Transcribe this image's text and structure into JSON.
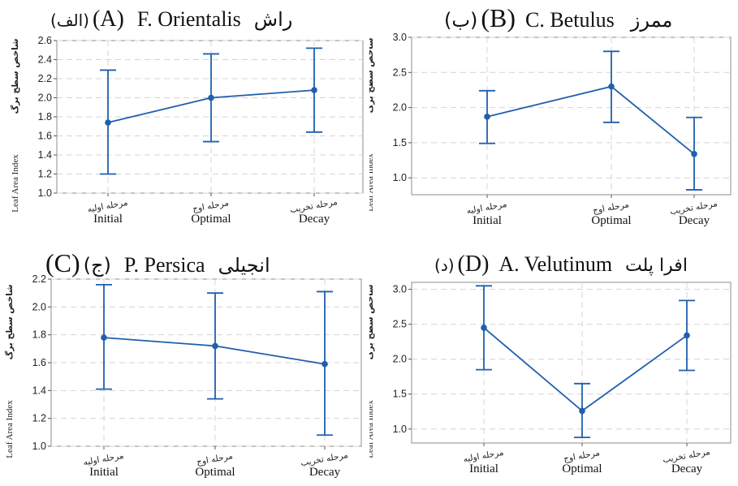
{
  "axis_title_en": "Leaf Area Index",
  "axis_title_fa": "شاخص سطح برگ",
  "chart_data": [
    {
      "type": "line",
      "panel_code": "(A)",
      "panel_code_fa": "(الف)",
      "species": "F. Orientalis",
      "species_fa": "راش",
      "ylabel": "Leaf Area Index",
      "categories": [
        "Initial",
        "Optimal",
        "Decay"
      ],
      "categories_fa": [
        "مرحله اولیه",
        "مرحله اوج",
        "مرحله تخریب"
      ],
      "values": [
        1.74,
        2.0,
        2.08
      ],
      "error_low": [
        1.2,
        1.54,
        1.64
      ],
      "error_high": [
        2.29,
        2.46,
        2.52
      ],
      "ylim": [
        1.0,
        2.6
      ],
      "yticks": [
        "1.0",
        "1.2",
        "1.4",
        "1.6",
        "1.8",
        "2.0",
        "2.2",
        "2.4",
        "2.6"
      ],
      "grid": true,
      "color": "#1f5fad"
    },
    {
      "type": "line",
      "panel_code": "(B)",
      "panel_code_fa": "(ب)",
      "species": "C. Betulus",
      "species_fa": "ممرز",
      "ylabel": "Leaf Area Index",
      "categories": [
        "Initial",
        "Optimal",
        "Decay"
      ],
      "categories_fa": [
        "مرحله اولیه",
        "مرحله اوج",
        "مرحله تخریب"
      ],
      "values": [
        1.87,
        2.3,
        1.34
      ],
      "error_low": [
        1.49,
        1.79,
        0.83
      ],
      "error_high": [
        2.24,
        2.8,
        1.86
      ],
      "ylim": [
        0.76,
        3.0
      ],
      "yticks": [
        "1.0",
        "1.5",
        "2.0",
        "2.5",
        "3.0"
      ],
      "grid": true,
      "color": "#1f5fad"
    },
    {
      "type": "line",
      "panel_code": "(C)",
      "panel_code_fa": "(ج)",
      "species": "P. Persica",
      "species_fa": "انجیلی",
      "ylabel": "Leaf Area Index",
      "categories": [
        "Initial",
        "Optimal",
        "Decay"
      ],
      "categories_fa": [
        "مرحله اولیه",
        "مرحله اوج",
        "مرحله تخریب"
      ],
      "values": [
        1.78,
        1.72,
        1.59
      ],
      "error_low": [
        1.41,
        1.34,
        1.08
      ],
      "error_high": [
        2.16,
        2.1,
        2.11
      ],
      "ylim": [
        1.0,
        2.2
      ],
      "yticks": [
        "1.0",
        "1.2",
        "1.4",
        "1.6",
        "1.8",
        "2.0",
        "2.2"
      ],
      "grid": true,
      "color": "#1f5fad"
    },
    {
      "type": "line",
      "panel_code": "(D)",
      "panel_code_fa": "(د)",
      "species": "A. Velutinum",
      "species_fa": "افرا پلت",
      "ylabel": "Leaf Area Index",
      "categories": [
        "Initial",
        "Optimal",
        "Decay"
      ],
      "categories_fa": [
        "مرحله اولیه",
        "مرحله اوج",
        "مرحله تخریب"
      ],
      "values": [
        2.45,
        1.26,
        2.34
      ],
      "error_low": [
        1.85,
        0.88,
        1.84
      ],
      "error_high": [
        3.05,
        1.65,
        2.84
      ],
      "ylim": [
        0.8,
        3.1
      ],
      "yticks": [
        "1.0",
        "1.5",
        "2.0",
        "2.5",
        "3.0"
      ],
      "grid": true,
      "color": "#1f5fad"
    }
  ]
}
